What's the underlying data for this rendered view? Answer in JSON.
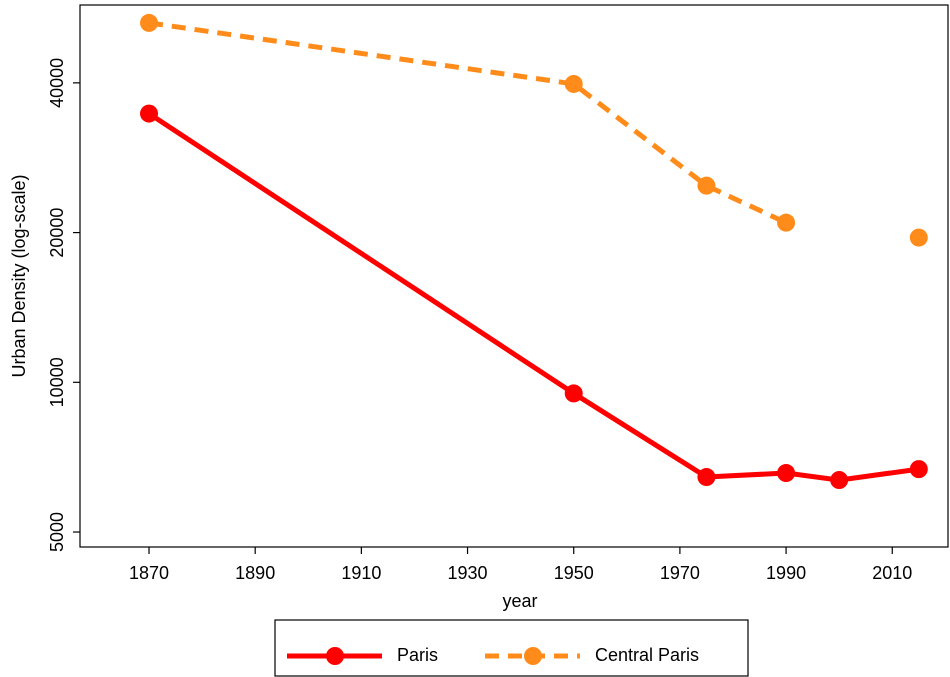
{
  "chart_data": {
    "type": "line",
    "x_label": "year",
    "y_label": "Urban Density (log-scale)",
    "x": [
      1870,
      1950,
      1975,
      1990,
      2000,
      2015
    ],
    "series": [
      {
        "name": "Paris",
        "color": "#ff0000",
        "dash": false,
        "values": [
          34700,
          9500,
          6450,
          6570,
          6360,
          6690
        ]
      },
      {
        "name": "Central Paris",
        "color": "#ff8c1a",
        "dash": true,
        "values": [
          52800,
          39800,
          24850,
          20940,
          null,
          19540
        ]
      }
    ],
    "xlim": [
      1857,
      2020.5
    ],
    "xticks": [
      1870,
      1890,
      1910,
      1930,
      1950,
      1970,
      1990,
      2010
    ],
    "ylim": [
      4665,
      57360
    ],
    "yticks": [
      5000,
      10000,
      20000,
      40000
    ],
    "ylog": true,
    "grid": false,
    "legend": "bottom"
  }
}
